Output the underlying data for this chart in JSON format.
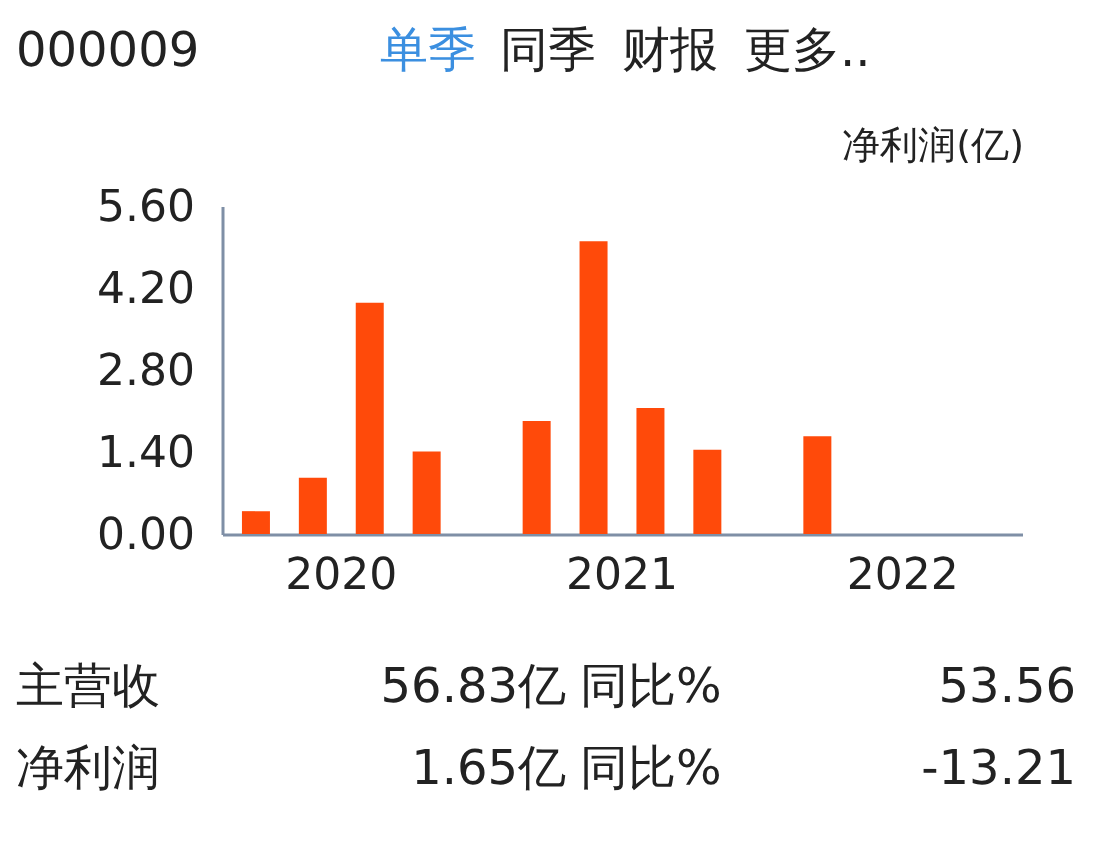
{
  "chart_data": {
    "type": "bar",
    "categories": [
      "2020",
      "2021",
      "2022"
    ],
    "series": [
      {
        "color": "#ff4a0a",
        "values": [
          0.39,
          1.93,
          1.67
        ]
      },
      {
        "color": "#ff4a0a",
        "values": [
          0.96,
          5.0,
          null
        ]
      },
      {
        "color": "#ff4a0a",
        "values": [
          3.95,
          2.15,
          null
        ]
      },
      {
        "color": "#ff4a0a",
        "values": [
          1.41,
          1.44,
          null
        ]
      }
    ],
    "ylabel": "净利润(亿)",
    "ylim": [
      0,
      5.6
    ],
    "yticks": [
      {
        "value": 0,
        "label": "0.00"
      },
      {
        "value": 1.4,
        "label": "1.40"
      },
      {
        "value": 2.8,
        "label": "2.80"
      },
      {
        "value": 4.2,
        "label": "4.20"
      },
      {
        "value": 5.6,
        "label": "5.60"
      }
    ],
    "grid": false,
    "annotations": [
      "000009",
      "单季",
      "同季",
      "财报",
      "更多..",
      "主营收",
      "56.83亿",
      "同比%",
      "53.56",
      "净利润",
      "1.65亿",
      "同比%",
      "-13.21"
    ]
  }
}
